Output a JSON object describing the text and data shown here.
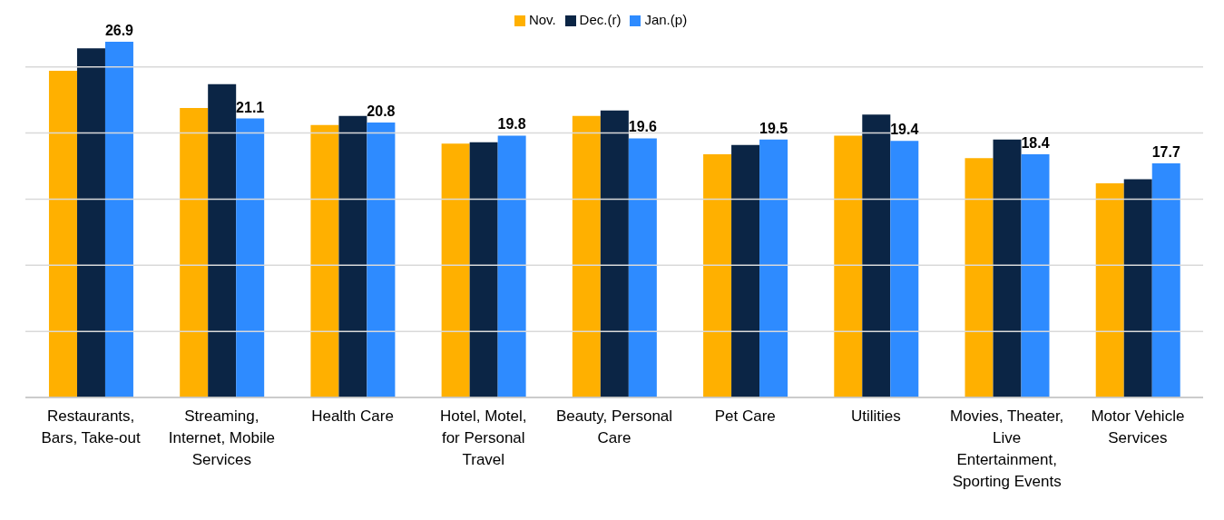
{
  "chart_data": {
    "type": "bar",
    "categories": [
      "Restaurants, Bars, Take-out",
      "Streaming, Internet, Mobile Services",
      "Health Care",
      "Hotel, Motel, for Personal Travel",
      "Beauty, Personal Care",
      "Pet Care",
      "Utilities",
      "Movies, Theater, Live Entertainment, Sporting Events",
      "Motor Vehicle Services"
    ],
    "series": [
      {
        "name": "Nov.",
        "color": "#ffb000",
        "values": [
          24.7,
          21.9,
          20.6,
          19.2,
          21.3,
          18.4,
          19.8,
          18.1,
          16.2
        ]
      },
      {
        "name": "Dec.(r)",
        "color": "#0b2545",
        "values": [
          26.4,
          23.7,
          21.3,
          19.3,
          21.7,
          19.1,
          21.4,
          19.5,
          16.5
        ]
      },
      {
        "name": "Jan.(p)",
        "color": "#2e8bff",
        "values": [
          26.9,
          21.1,
          20.8,
          19.8,
          19.6,
          19.5,
          19.4,
          18.4,
          17.7
        ],
        "value_labels": [
          "26.9",
          "21.1",
          "20.8",
          "19.8",
          "19.6",
          "19.5",
          "19.4",
          "18.4",
          "17.7"
        ]
      }
    ],
    "yticks": [
      {
        "value": 0,
        "label": null
      },
      {
        "value": 5,
        "label": null
      },
      {
        "value": 10,
        "label": null
      },
      {
        "value": 15,
        "label": null
      },
      {
        "value": 20,
        "label": null
      },
      {
        "value": 25,
        "label": null
      }
    ],
    "tick_labels": "x",
    "grid": "y",
    "legend": "top"
  }
}
